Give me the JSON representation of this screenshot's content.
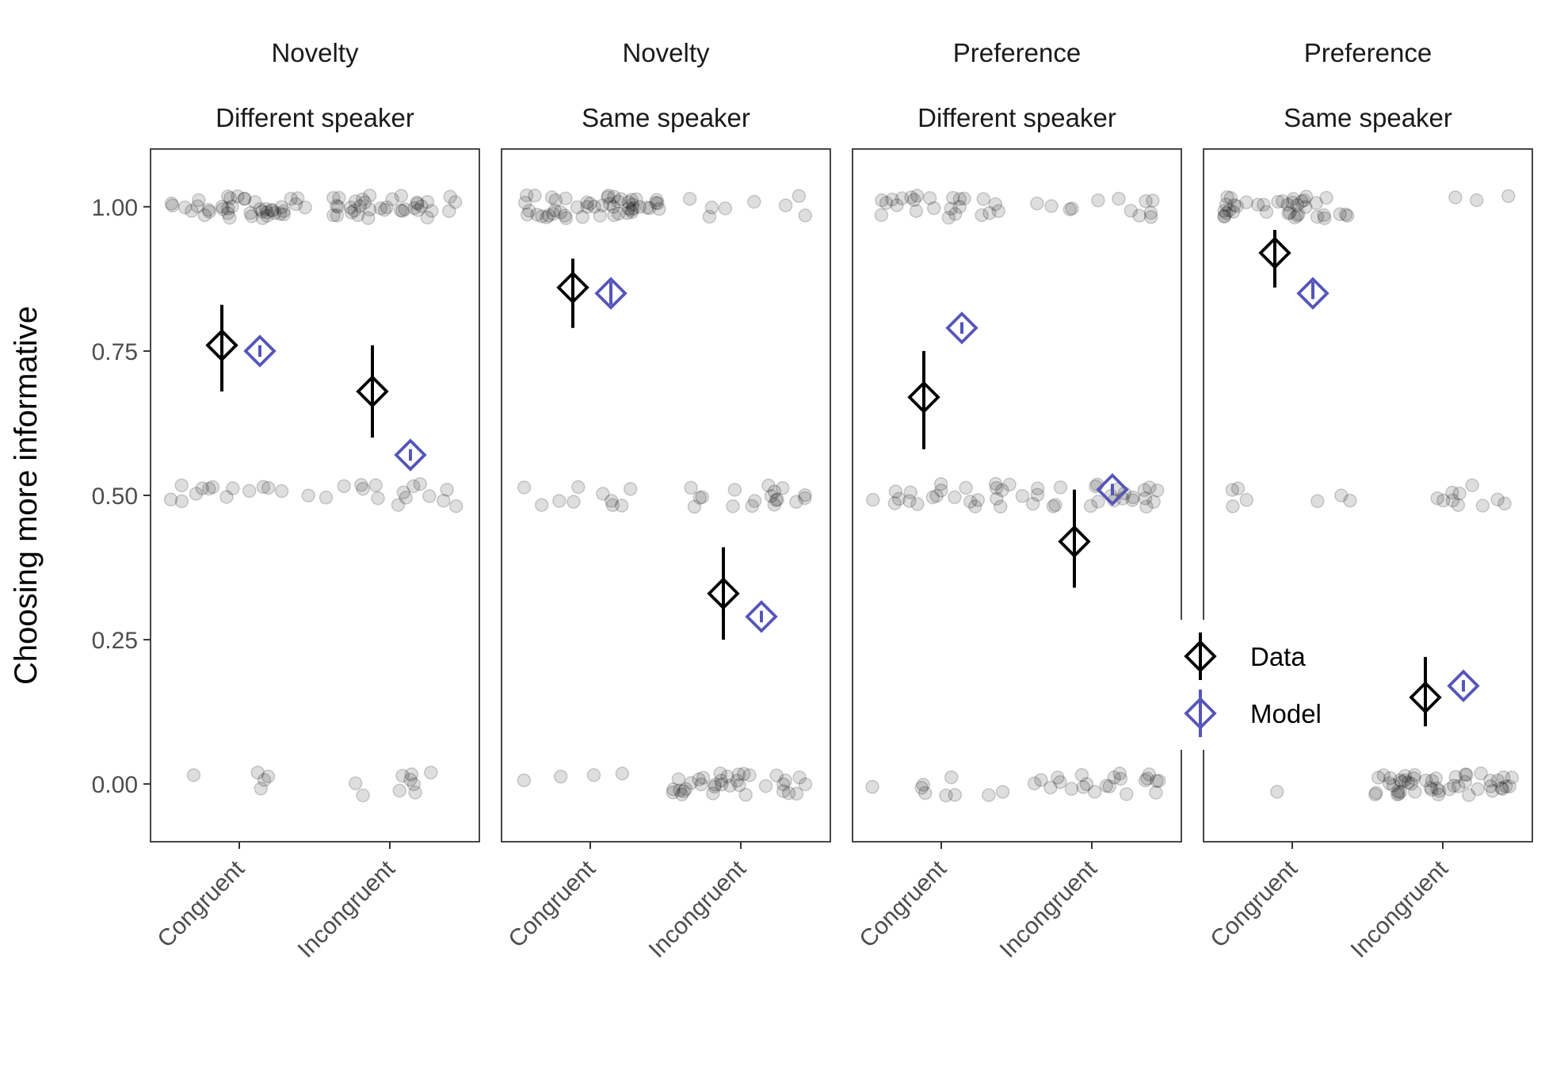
{
  "chart_data": {
    "type": "scatter",
    "ylabel": "Choosing more informative",
    "xlabel": "",
    "ylim": [
      -0.1,
      1.1
    ],
    "y_ticks": [
      "0.00",
      "0.25",
      "0.50",
      "0.75",
      "1.00"
    ],
    "y_tick_values": [
      0,
      0.25,
      0.5,
      0.75,
      1.0
    ],
    "categories": [
      "Congruent",
      "Incongruent"
    ],
    "grid": false,
    "legend": {
      "placement": "right",
      "entries": [
        {
          "label": "Data",
          "color": "#000000"
        },
        {
          "label": "Model",
          "color": "#5555bb"
        }
      ]
    },
    "colors": {
      "data": "#000000",
      "model": "#5555bb",
      "points": "#000000"
    },
    "panels": [
      {
        "strip_top": "Novelty",
        "strip_bottom": "Different speaker",
        "series": [
          {
            "name": "Data",
            "values": [
              0.76,
              0.68
            ],
            "ci_low": [
              0.68,
              0.6
            ],
            "ci_high": [
              0.83,
              0.76
            ]
          },
          {
            "name": "Model",
            "values": [
              0.75,
              0.57
            ],
            "ci_low": [
              0.74,
              0.56
            ],
            "ci_high": [
              0.76,
              0.58
            ]
          }
        ],
        "raw_counts": {
          "Congruent": {
            "1": 40,
            "0.5": 14,
            "0": 5
          },
          "Incongruent": {
            "1": 36,
            "0.5": 15,
            "0": 9
          }
        }
      },
      {
        "strip_top": "Novelty",
        "strip_bottom": "Same speaker",
        "series": [
          {
            "name": "Data",
            "values": [
              0.86,
              0.33
            ],
            "ci_low": [
              0.79,
              0.25
            ],
            "ci_high": [
              0.91,
              0.41
            ]
          },
          {
            "name": "Model",
            "values": [
              0.85,
              0.29
            ],
            "ci_low": [
              0.83,
              0.28
            ],
            "ci_high": [
              0.87,
              0.3
            ]
          }
        ],
        "raw_counts": {
          "Congruent": {
            "1": 50,
            "0.5": 10,
            "0": 4
          },
          "Incongruent": {
            "1": 8,
            "0.5": 18,
            "0": 34
          }
        }
      },
      {
        "strip_top": "Preference",
        "strip_bottom": "Different speaker",
        "series": [
          {
            "name": "Data",
            "values": [
              0.67,
              0.42
            ],
            "ci_low": [
              0.58,
              0.34
            ],
            "ci_high": [
              0.75,
              0.51
            ]
          },
          {
            "name": "Model",
            "values": [
              0.79,
              0.51
            ],
            "ci_low": [
              0.78,
              0.5
            ],
            "ci_high": [
              0.8,
              0.52
            ]
          }
        ],
        "raw_counts": {
          "Congruent": {
            "1": 24,
            "0.5": 22,
            "0": 9
          },
          "Incongruent": {
            "1": 12,
            "0.5": 24,
            "0": 22
          }
        }
      },
      {
        "strip_top": "Preference",
        "strip_bottom": "Same speaker",
        "series": [
          {
            "name": "Data",
            "values": [
              0.92,
              0.15
            ],
            "ci_low": [
              0.86,
              0.1
            ],
            "ci_high": [
              0.96,
              0.22
            ]
          },
          {
            "name": "Model",
            "values": [
              0.85,
              0.17
            ],
            "ci_low": [
              0.84,
              0.16
            ],
            "ci_high": [
              0.87,
              0.18
            ]
          }
        ],
        "raw_counts": {
          "Congruent": {
            "1": 38,
            "0.5": 7,
            "0": 1
          },
          "Incongruent": {
            "1": 3,
            "0.5": 10,
            "0": 48
          }
        }
      }
    ]
  }
}
